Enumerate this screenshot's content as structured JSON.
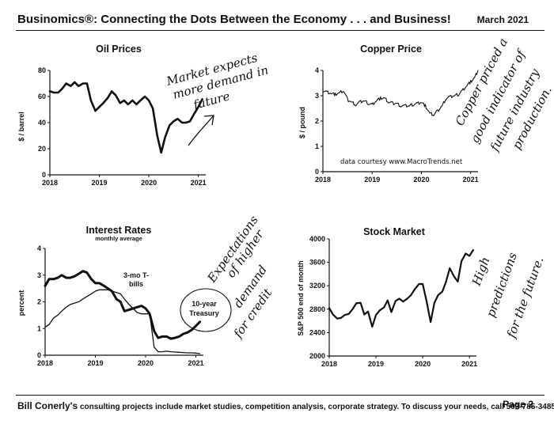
{
  "header": {
    "title": "Businomics®: Connecting the Dots Between the Economy . . . and Business!",
    "date": "March 2021"
  },
  "footer": {
    "name": "Bill Conerly's",
    "text": "consulting projects include market studies, competition analysis, corporate strategy.  To discuss your needs, call 503-785-3485.",
    "page": "Page 2"
  },
  "chart_data": [
    {
      "id": "oil",
      "type": "line",
      "title": "Oil Prices",
      "ylabel": "$ / barrel",
      "xlim": [
        2018,
        2021.15
      ],
      "ylim": [
        0,
        80
      ],
      "xticks": [
        2018,
        2019,
        2020,
        2021
      ],
      "yticks": [
        0,
        20,
        40,
        60,
        80
      ],
      "series": [
        {
          "x": [
            2018.0,
            2018.08,
            2018.17,
            2018.25,
            2018.33,
            2018.42,
            2018.5,
            2018.58,
            2018.67,
            2018.75,
            2018.83,
            2018.92,
            2019.0,
            2019.08,
            2019.17,
            2019.25,
            2019.33,
            2019.42,
            2019.5,
            2019.58,
            2019.67,
            2019.75,
            2019.83,
            2019.92,
            2020.0,
            2020.08,
            2020.17,
            2020.25,
            2020.33,
            2020.42,
            2020.5,
            2020.58,
            2020.67,
            2020.75,
            2020.83,
            2020.92,
            2021.0,
            2021.08
          ],
          "y": [
            64,
            63,
            63,
            66,
            70,
            68,
            71,
            68,
            70,
            70,
            57,
            49,
            52,
            55,
            59,
            64,
            61,
            55,
            57,
            54,
            57,
            54,
            57,
            60,
            57,
            51,
            30,
            17,
            29,
            38,
            41,
            43,
            40,
            40,
            41,
            47,
            52,
            58
          ]
        }
      ],
      "annotations": [
        {
          "text": "Market expects",
          "pos": [
            2019.35,
            70
          ]
        },
        {
          "text": "more demand in",
          "pos": [
            2019.55,
            62
          ]
        },
        {
          "text": "future",
          "pos": [
            2019.95,
            54
          ]
        }
      ]
    },
    {
      "id": "copper",
      "type": "line",
      "title": "Copper Price",
      "ylabel": "$ / pound",
      "xlim": [
        2018,
        2021.15
      ],
      "ylim": [
        0,
        4
      ],
      "xticks": [
        2018,
        2019,
        2020,
        2021
      ],
      "yticks": [
        0,
        1,
        2,
        3,
        4
      ],
      "series": [
        {
          "x": [
            2018.0,
            2018.08,
            2018.17,
            2018.25,
            2018.33,
            2018.42,
            2018.5,
            2018.58,
            2018.67,
            2018.75,
            2018.83,
            2018.92,
            2019.0,
            2019.08,
            2019.17,
            2019.25,
            2019.33,
            2019.42,
            2019.5,
            2019.58,
            2019.67,
            2019.75,
            2019.83,
            2019.92,
            2020.0,
            2020.08,
            2020.17,
            2020.25,
            2020.33,
            2020.42,
            2020.5,
            2020.58,
            2020.67,
            2020.75,
            2020.83,
            2020.92,
            2021.0,
            2021.08,
            2021.15
          ],
          "y": [
            3.2,
            3.15,
            3.1,
            3.05,
            3.1,
            3.2,
            2.85,
            2.75,
            2.65,
            2.75,
            2.8,
            2.7,
            2.65,
            2.8,
            2.9,
            2.9,
            2.75,
            2.7,
            2.7,
            2.6,
            2.6,
            2.6,
            2.65,
            2.7,
            2.75,
            2.6,
            2.3,
            2.25,
            2.4,
            2.6,
            2.9,
            2.95,
            3.0,
            3.05,
            3.2,
            3.4,
            3.55,
            3.7,
            4.0
          ]
        }
      ],
      "note": "data courtesy www.MacroTrends.net",
      "annotations": [
        {
          "text": "Copper priced a",
          "pos": [
            2020.55,
            3.3
          ]
        },
        {
          "text": "good indicator of",
          "pos": [
            2020.7,
            2.8
          ]
        },
        {
          "text": "future industry",
          "pos": [
            2020.85,
            2.3
          ]
        },
        {
          "text": "production.",
          "pos": [
            2021.0,
            1.8
          ]
        }
      ]
    },
    {
      "id": "rates",
      "type": "line",
      "title": "Interest Rates",
      "subtitle": "monthly average",
      "ylabel": "percent",
      "xlim": [
        2018,
        2021.15
      ],
      "ylim": [
        0,
        4
      ],
      "xticks": [
        2018,
        2019,
        2020,
        2021
      ],
      "yticks": [
        0,
        1,
        2,
        3,
        4
      ],
      "series": [
        {
          "name": "10-year Treasury",
          "x": [
            2018.0,
            2018.08,
            2018.17,
            2018.25,
            2018.33,
            2018.42,
            2018.5,
            2018.58,
            2018.67,
            2018.75,
            2018.83,
            2018.92,
            2019.0,
            2019.08,
            2019.17,
            2019.25,
            2019.33,
            2019.42,
            2019.5,
            2019.58,
            2019.67,
            2019.75,
            2019.83,
            2019.92,
            2020.0,
            2020.08,
            2020.17,
            2020.25,
            2020.33,
            2020.42,
            2020.5,
            2020.58,
            2020.67,
            2020.75,
            2020.83,
            2020.92,
            2021.0,
            2021.08
          ],
          "y": [
            2.6,
            2.85,
            2.85,
            2.9,
            3.0,
            2.9,
            2.9,
            2.95,
            3.05,
            3.15,
            3.1,
            2.85,
            2.7,
            2.7,
            2.6,
            2.5,
            2.4,
            2.1,
            2.0,
            1.65,
            1.7,
            1.75,
            1.8,
            1.85,
            1.75,
            1.55,
            0.9,
            0.65,
            0.7,
            0.7,
            0.62,
            0.65,
            0.7,
            0.8,
            0.85,
            0.95,
            1.1,
            1.25
          ]
        },
        {
          "name": "3-mo T-bills",
          "x": [
            2018.0,
            2018.08,
            2018.17,
            2018.25,
            2018.33,
            2018.42,
            2018.5,
            2018.58,
            2018.67,
            2018.75,
            2018.83,
            2018.92,
            2019.0,
            2019.08,
            2019.17,
            2019.25,
            2019.33,
            2019.42,
            2019.5,
            2019.58,
            2019.67,
            2019.75,
            2019.83,
            2019.92,
            2020.0,
            2020.08,
            2020.17,
            2020.25,
            2020.33,
            2020.42,
            2020.5,
            2020.58,
            2020.67,
            2020.75,
            2020.83,
            2020.92,
            2021.0,
            2021.08
          ],
          "y": [
            1.05,
            1.15,
            1.4,
            1.5,
            1.65,
            1.8,
            1.9,
            1.95,
            2.0,
            2.1,
            2.2,
            2.3,
            2.4,
            2.45,
            2.45,
            2.45,
            2.4,
            2.35,
            2.3,
            2.1,
            1.9,
            1.75,
            1.6,
            1.55,
            1.55,
            1.55,
            0.3,
            0.13,
            0.13,
            0.15,
            0.13,
            0.12,
            0.11,
            0.1,
            0.09,
            0.09,
            0.08,
            0.06
          ]
        }
      ],
      "labels": [
        {
          "text": "3-mo T-",
          "pos": [
            2019.53,
            3.1
          ]
        },
        {
          "text": "bills",
          "pos": [
            2019.6,
            2.75
          ]
        },
        {
          "text": "10-year",
          "pos": [
            2020.9,
            1.95
          ]
        },
        {
          "text": "Treasury",
          "pos": [
            2020.9,
            1.6
          ]
        }
      ],
      "annotations": [
        {
          "text": "Expectations",
          "pos": [
            2020.75,
            2.6
          ]
        },
        {
          "text": "of higher",
          "pos": [
            2020.95,
            2.3
          ]
        },
        {
          "text": "demand",
          "pos": [
            2021.2,
            1.55
          ]
        },
        {
          "text": "for credit",
          "pos": [
            2021.35,
            0.9
          ]
        }
      ]
    },
    {
      "id": "stocks",
      "type": "line",
      "title": "Stock Market",
      "ylabel": "S&P 500 end of month",
      "xlim": [
        2018,
        2021.15
      ],
      "ylim": [
        2000,
        4000
      ],
      "xticks": [
        2018,
        2019,
        2020,
        2021
      ],
      "yticks": [
        2000,
        2400,
        2800,
        3200,
        3600,
        4000
      ],
      "series": [
        {
          "x": [
            2018.0,
            2018.08,
            2018.17,
            2018.25,
            2018.33,
            2018.42,
            2018.5,
            2018.58,
            2018.67,
            2018.75,
            2018.83,
            2018.92,
            2019.0,
            2019.08,
            2019.17,
            2019.25,
            2019.33,
            2019.42,
            2019.5,
            2019.58,
            2019.67,
            2019.75,
            2019.83,
            2019.92,
            2020.0,
            2020.08,
            2020.17,
            2020.25,
            2020.33,
            2020.42,
            2020.5,
            2020.58,
            2020.67,
            2020.75,
            2020.83,
            2020.92,
            2021.0,
            2021.08
          ],
          "y": [
            2820,
            2710,
            2640,
            2650,
            2700,
            2720,
            2800,
            2900,
            2910,
            2710,
            2760,
            2500,
            2700,
            2780,
            2830,
            2950,
            2750,
            2940,
            2980,
            2930,
            2980,
            3040,
            3140,
            3230,
            3230,
            2950,
            2580,
            2910,
            3040,
            3100,
            3270,
            3500,
            3360,
            3270,
            3620,
            3750,
            3710,
            3810
          ]
        }
      ],
      "annotations": [
        {
          "text": "High",
          "pos": [
            2020.8,
            3200
          ]
        },
        {
          "text": "predictions",
          "pos": [
            2020.85,
            2850
          ]
        },
        {
          "text": "for the future.",
          "pos": [
            2021.0,
            2350
          ]
        }
      ]
    }
  ]
}
